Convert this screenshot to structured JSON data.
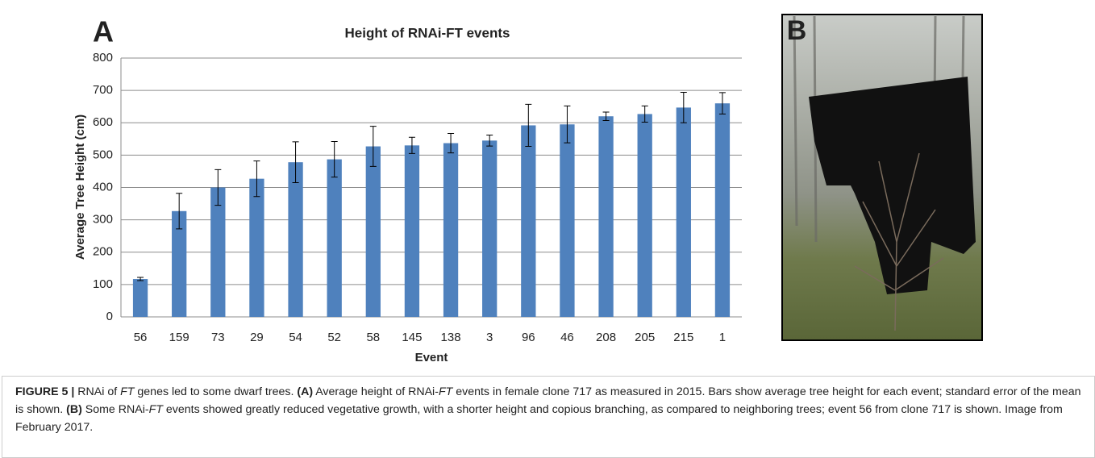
{
  "panels": [
    "A",
    "B"
  ],
  "chart_data": {
    "type": "bar",
    "title": "Height of RNAi-FT events",
    "x_label": "Event",
    "y_label": "Average Tree Height (cm)",
    "categories": [
      "56",
      "159",
      "73",
      "29",
      "54",
      "52",
      "58",
      "145",
      "138",
      "3",
      "96",
      "46",
      "208",
      "205",
      "215",
      "1"
    ],
    "values": [
      117,
      327,
      400,
      427,
      478,
      487,
      527,
      530,
      537,
      545,
      592,
      595,
      620,
      627,
      647,
      660
    ],
    "errors": [
      5,
      55,
      55,
      55,
      63,
      55,
      62,
      25,
      30,
      17,
      65,
      57,
      13,
      25,
      47,
      33
    ],
    "color": "#4f81bd",
    "ylim": [
      0,
      800
    ],
    "yticks": [
      0,
      100,
      200,
      300,
      400,
      500,
      600,
      700,
      800
    ],
    "grid": true
  },
  "caption": [
    "FIGURE 5 |",
    " RNAi of ",
    "FT",
    " genes led to some dwarf trees. ",
    "(A)",
    " Average height of RNAi-",
    "FT",
    " events in female clone 717 as measured in 2015. Bars show average tree height for each event; standard error of the mean is shown. ",
    "(B)",
    " Some RNAi-",
    "FT",
    " events showed greatly reduced vegetative growth, with a shorter height and copious branching, as compared to neighboring trees; event 56 from clone 717 is shown. Image from February 2017."
  ]
}
